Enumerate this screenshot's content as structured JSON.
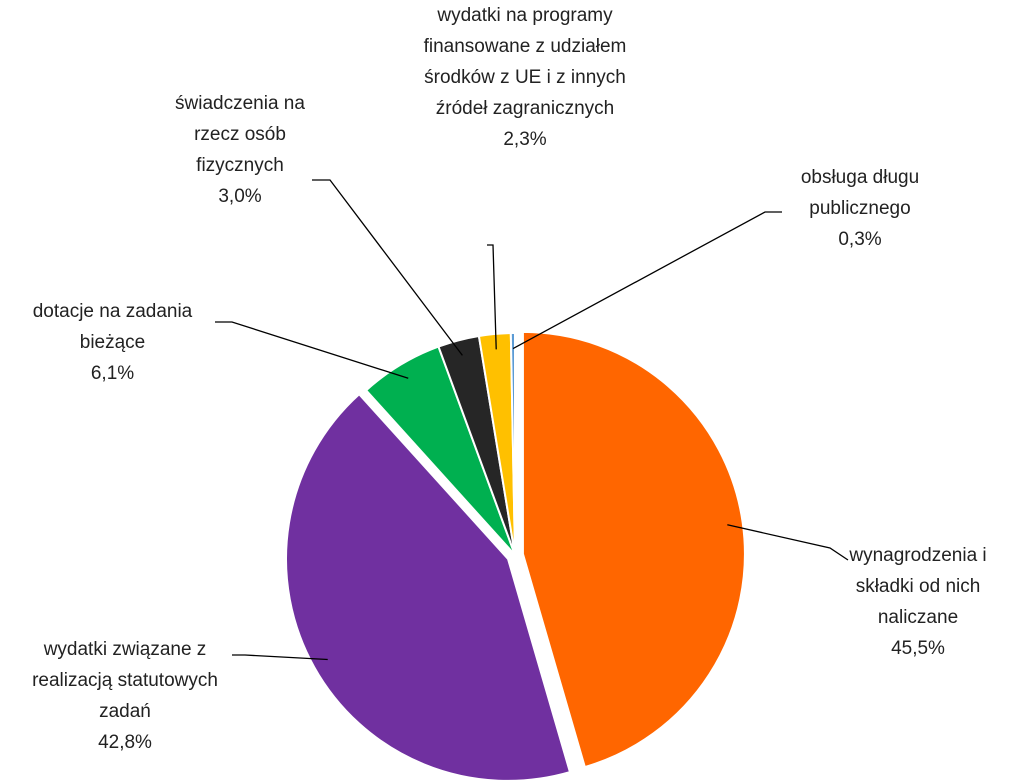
{
  "chart_data": {
    "type": "pie",
    "categories": [
      "wynagrodzenia i składki od nich naliczane",
      "wydatki związane z realizacją statutowych zadań",
      "dotacje na zadania bieżące",
      "świadczenia na rzecz osób fizycznych",
      "wydatki na programy finansowane z udziałem środków z UE i z innych źródeł zagranicznych",
      "obsługa długu publicznego"
    ],
    "values": [
      45.5,
      42.8,
      6.1,
      3.0,
      2.3,
      0.3
    ],
    "value_labels": [
      "45,5%",
      "42,8%",
      "6,1%",
      "3,0%",
      "2,3%",
      "0,3%"
    ],
    "colors": [
      "#ff6600",
      "#7030a0",
      "#00b050",
      "#262626",
      "#ffc000",
      "#5b9bd5"
    ]
  }
}
